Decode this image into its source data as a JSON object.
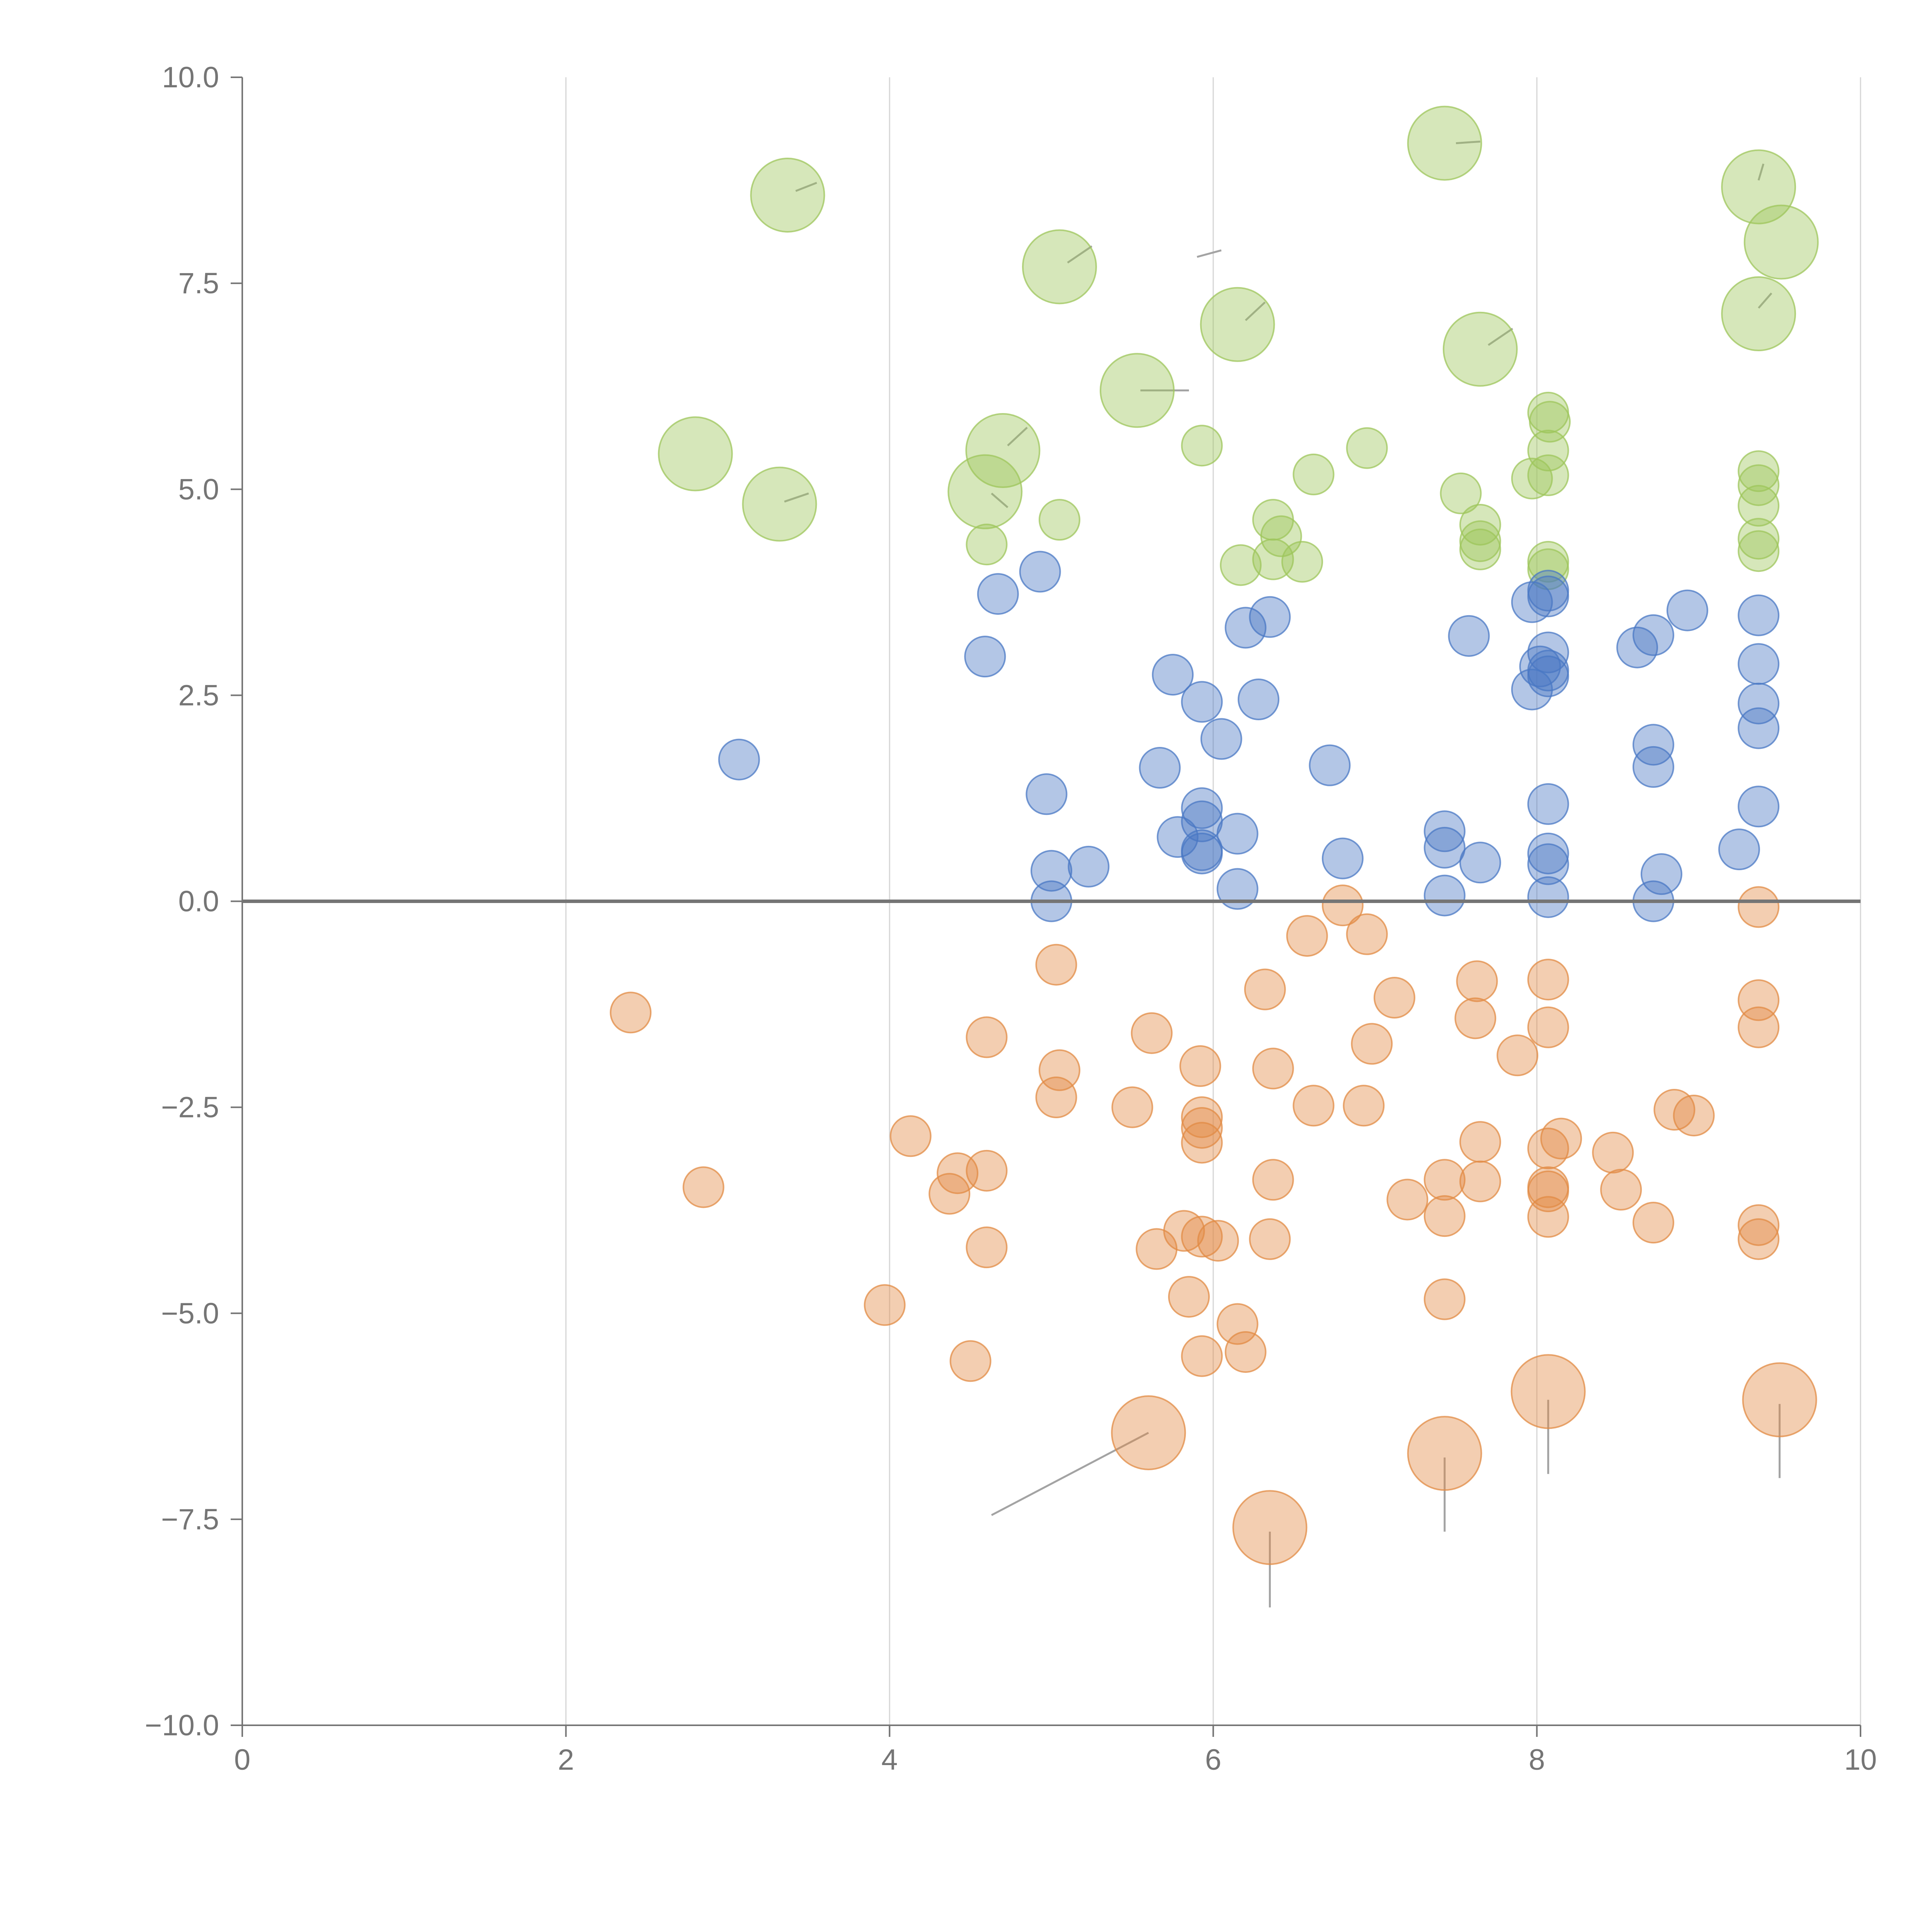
{
  "chart_data": {
    "type": "scatter",
    "title": "",
    "xlabel": "",
    "ylabel": "",
    "xlim": [
      0,
      10
    ],
    "ylim": [
      -10,
      10
    ],
    "x_ticks": [
      0,
      2,
      4,
      6,
      8,
      10
    ],
    "x_tick_labels": [
      "0",
      "2",
      "4",
      "6",
      "8",
      "10"
    ],
    "y_ticks": [
      10,
      7.5,
      5,
      2.5,
      0,
      -2.5,
      -5,
      -7.5,
      -10
    ],
    "y_tick_labels": [
      "10.0",
      "7.5",
      "5.0",
      "2.5",
      "0.0",
      "−2.5",
      "−5.0",
      "−7.5",
      "−10.0"
    ],
    "grid": "vertical",
    "reference_line_y": 0,
    "colors": {
      "green": "#9dc65b",
      "blue": "#4a78c4",
      "orange": "#e28b44",
      "axis": "#757575",
      "grid": "#d6d6d6",
      "leader": "#a3a3a3"
    },
    "series": [
      {
        "name": "green",
        "color": "#9dc65b",
        "points": [
          [
            3.37,
            8.57,
            "L"
          ],
          [
            5.05,
            7.7,
            "L"
          ],
          [
            7.43,
            9.2,
            "L"
          ],
          [
            9.37,
            8.67,
            "L"
          ],
          [
            9.51,
            8.0,
            "L"
          ],
          [
            6.15,
            7.0,
            "L"
          ],
          [
            7.65,
            6.7,
            "L"
          ],
          [
            9.37,
            7.13,
            "L"
          ],
          [
            5.53,
            6.2,
            "L"
          ],
          [
            2.8,
            5.43,
            "L"
          ],
          [
            4.7,
            5.47,
            "L"
          ],
          [
            3.32,
            4.82,
            "L"
          ],
          [
            4.59,
            4.97,
            "L"
          ],
          [
            5.93,
            5.53,
            "S"
          ],
          [
            6.95,
            5.5,
            "S"
          ],
          [
            6.62,
            5.18,
            "S"
          ],
          [
            8.07,
            5.93,
            "S"
          ],
          [
            8.08,
            5.82,
            "S"
          ],
          [
            8.07,
            5.47,
            "S"
          ],
          [
            7.97,
            5.13,
            "S"
          ],
          [
            8.07,
            5.17,
            "S"
          ],
          [
            9.37,
            5.22,
            "S"
          ],
          [
            9.37,
            5.05,
            "S"
          ],
          [
            9.37,
            4.8,
            "S"
          ],
          [
            7.53,
            4.95,
            "S"
          ],
          [
            7.65,
            4.57,
            "S"
          ],
          [
            7.65,
            4.37,
            "S"
          ],
          [
            7.65,
            4.27,
            "S"
          ],
          [
            6.37,
            4.63,
            "S"
          ],
          [
            6.42,
            4.43,
            "S"
          ],
          [
            6.37,
            4.15,
            "S"
          ],
          [
            6.55,
            4.12,
            "S"
          ],
          [
            6.17,
            4.08,
            "S"
          ],
          [
            5.05,
            4.63,
            "S"
          ],
          [
            4.6,
            4.33,
            "S"
          ],
          [
            8.07,
            4.12,
            "S"
          ],
          [
            8.07,
            4.03,
            "S"
          ],
          [
            9.37,
            4.4,
            "S"
          ],
          [
            9.37,
            4.25,
            "S"
          ]
        ]
      },
      {
        "name": "blue",
        "color": "#4a78c4",
        "points": [
          [
            4.67,
            3.73,
            "S"
          ],
          [
            4.93,
            4.0,
            "S"
          ],
          [
            4.59,
            2.97,
            "S"
          ],
          [
            3.07,
            1.72,
            "S"
          ],
          [
            5.75,
            2.75,
            "S"
          ],
          [
            5.93,
            2.42,
            "S"
          ],
          [
            6.05,
            1.97,
            "S"
          ],
          [
            6.28,
            2.45,
            "S"
          ],
          [
            6.2,
            3.32,
            "S"
          ],
          [
            6.35,
            3.45,
            "S"
          ],
          [
            5.67,
            1.62,
            "S"
          ],
          [
            4.97,
            1.3,
            "S"
          ],
          [
            5.93,
            1.13,
            "S"
          ],
          [
            5.93,
            0.97,
            "S"
          ],
          [
            5.78,
            0.78,
            "S"
          ],
          [
            5.93,
            0.62,
            "S"
          ],
          [
            5.93,
            0.58,
            "S"
          ],
          [
            6.15,
            0.82,
            "S"
          ],
          [
            6.15,
            0.15,
            "S"
          ],
          [
            5.0,
            0.37,
            "S"
          ],
          [
            5.23,
            0.42,
            "S"
          ],
          [
            5.0,
            0.0,
            "S"
          ],
          [
            6.72,
            1.65,
            "S"
          ],
          [
            6.8,
            0.52,
            "S"
          ],
          [
            7.43,
            0.85,
            "S"
          ],
          [
            7.43,
            0.65,
            "S"
          ],
          [
            7.43,
            0.07,
            "S"
          ],
          [
            7.65,
            0.47,
            "S"
          ],
          [
            7.58,
            3.22,
            "S"
          ],
          [
            7.97,
            3.63,
            "S"
          ],
          [
            8.07,
            3.77,
            "S"
          ],
          [
            8.07,
            3.7,
            "S"
          ],
          [
            8.07,
            3.02,
            "S"
          ],
          [
            8.02,
            2.85,
            "S"
          ],
          [
            8.07,
            2.73,
            "S"
          ],
          [
            8.07,
            2.8,
            "S"
          ],
          [
            7.97,
            2.57,
            "S"
          ],
          [
            8.07,
            1.18,
            "S"
          ],
          [
            8.07,
            0.58,
            "S"
          ],
          [
            8.07,
            0.45,
            "S"
          ],
          [
            8.07,
            0.05,
            "S"
          ],
          [
            8.62,
            3.08,
            "S"
          ],
          [
            8.72,
            3.23,
            "S"
          ],
          [
            8.93,
            3.53,
            "S"
          ],
          [
            8.72,
            1.9,
            "S"
          ],
          [
            8.72,
            1.63,
            "S"
          ],
          [
            8.77,
            0.33,
            "S"
          ],
          [
            8.72,
            0.0,
            "S"
          ],
          [
            9.37,
            3.47,
            "S"
          ],
          [
            9.37,
            2.88,
            "S"
          ],
          [
            9.37,
            2.4,
            "S"
          ],
          [
            9.37,
            2.1,
            "S"
          ],
          [
            9.37,
            1.15,
            "S"
          ],
          [
            9.25,
            0.63,
            "S"
          ]
        ]
      },
      {
        "name": "orange",
        "color": "#e28b44",
        "points": [
          [
            2.4,
            -1.35,
            "S"
          ],
          [
            2.85,
            -3.47,
            "S"
          ],
          [
            3.97,
            -4.9,
            "S"
          ],
          [
            4.13,
            -2.85,
            "S"
          ],
          [
            4.42,
            -3.3,
            "S"
          ],
          [
            4.37,
            -3.55,
            "S"
          ],
          [
            4.6,
            -3.27,
            "S"
          ],
          [
            4.6,
            -4.2,
            "S"
          ],
          [
            4.5,
            -5.58,
            "S"
          ],
          [
            4.6,
            -1.65,
            "S"
          ],
          [
            5.03,
            -0.77,
            "S"
          ],
          [
            5.05,
            -2.05,
            "S"
          ],
          [
            5.03,
            -2.38,
            "S"
          ],
          [
            5.5,
            -2.5,
            "S"
          ],
          [
            5.62,
            -1.6,
            "S"
          ],
          [
            5.92,
            -2.0,
            "S"
          ],
          [
            5.93,
            -2.62,
            "S"
          ],
          [
            5.93,
            -2.75,
            "S"
          ],
          [
            5.93,
            -2.93,
            "S"
          ],
          [
            5.82,
            -4.0,
            "S"
          ],
          [
            5.65,
            -4.22,
            "S"
          ],
          [
            5.93,
            -4.07,
            "S"
          ],
          [
            6.03,
            -4.12,
            "S"
          ],
          [
            5.85,
            -4.8,
            "S"
          ],
          [
            5.93,
            -5.52,
            "S"
          ],
          [
            6.15,
            -5.13,
            "S"
          ],
          [
            6.2,
            -5.47,
            "S"
          ],
          [
            6.32,
            -1.07,
            "S"
          ],
          [
            6.37,
            -2.03,
            "S"
          ],
          [
            6.37,
            -3.38,
            "S"
          ],
          [
            6.35,
            -4.1,
            "S"
          ],
          [
            6.58,
            -0.42,
            "S"
          ],
          [
            6.62,
            -2.48,
            "S"
          ],
          [
            6.8,
            -0.05,
            "S"
          ],
          [
            6.95,
            -0.4,
            "S"
          ],
          [
            6.93,
            -2.48,
            "S"
          ],
          [
            6.98,
            -1.73,
            "S"
          ],
          [
            7.12,
            -1.17,
            "S"
          ],
          [
            7.2,
            -3.62,
            "S"
          ],
          [
            7.43,
            -3.38,
            "S"
          ],
          [
            7.43,
            -3.82,
            "S"
          ],
          [
            7.43,
            -4.83,
            "S"
          ],
          [
            7.63,
            -0.97,
            "S"
          ],
          [
            7.62,
            -1.42,
            "S"
          ],
          [
            7.65,
            -2.92,
            "S"
          ],
          [
            7.65,
            -3.4,
            "S"
          ],
          [
            7.88,
            -1.87,
            "S"
          ],
          [
            8.07,
            -0.95,
            "S"
          ],
          [
            8.07,
            -1.53,
            "S"
          ],
          [
            8.07,
            -3.0,
            "S"
          ],
          [
            8.15,
            -2.88,
            "S"
          ],
          [
            8.07,
            -3.47,
            "S"
          ],
          [
            8.07,
            -3.52,
            "S"
          ],
          [
            8.07,
            -3.83,
            "S"
          ],
          [
            8.47,
            -3.05,
            "S"
          ],
          [
            8.52,
            -3.5,
            "S"
          ],
          [
            8.72,
            -3.9,
            "S"
          ],
          [
            8.85,
            -2.53,
            "S"
          ],
          [
            8.97,
            -2.6,
            "S"
          ],
          [
            9.37,
            -0.07,
            "S"
          ],
          [
            9.37,
            -1.2,
            "S"
          ],
          [
            9.37,
            -1.53,
            "S"
          ],
          [
            9.37,
            -3.93,
            "S"
          ],
          [
            9.37,
            -4.1,
            "S"
          ],
          [
            5.6,
            -6.45,
            "L"
          ],
          [
            6.35,
            -7.6,
            "L"
          ],
          [
            7.43,
            -6.7,
            "L"
          ],
          [
            8.07,
            -5.95,
            "L"
          ],
          [
            9.5,
            -6.05,
            "L"
          ]
        ]
      }
    ],
    "leader_lines": [
      [
        [
          3.42,
          8.62
        ],
        [
          3.55,
          8.72
        ]
      ],
      [
        [
          5.1,
          7.75
        ],
        [
          5.25,
          7.95
        ]
      ],
      [
        [
          7.5,
          9.2
        ],
        [
          7.65,
          9.22
        ]
      ],
      [
        [
          9.37,
          8.75
        ],
        [
          9.4,
          8.95
        ]
      ],
      [
        [
          6.2,
          7.05
        ],
        [
          6.32,
          7.27
        ]
      ],
      [
        [
          7.7,
          6.75
        ],
        [
          7.85,
          6.95
        ]
      ],
      [
        [
          9.37,
          7.2
        ],
        [
          9.45,
          7.38
        ]
      ],
      [
        [
          5.55,
          6.2
        ],
        [
          5.85,
          6.2
        ]
      ],
      [
        [
          4.73,
          5.53
        ],
        [
          4.85,
          5.75
        ]
      ],
      [
        [
          3.35,
          4.85
        ],
        [
          3.5,
          4.95
        ]
      ],
      [
        [
          4.63,
          4.95
        ],
        [
          4.73,
          4.78
        ]
      ],
      [
        [
          5.9,
          7.82
        ],
        [
          6.05,
          7.9
        ]
      ],
      [
        [
          5.6,
          -6.45
        ],
        [
          4.63,
          -7.45
        ]
      ],
      [
        [
          6.35,
          -7.65
        ],
        [
          6.35,
          -8.57
        ]
      ],
      [
        [
          7.43,
          -6.75
        ],
        [
          7.43,
          -7.65
        ]
      ],
      [
        [
          8.07,
          -6.05
        ],
        [
          8.07,
          -6.95
        ]
      ],
      [
        [
          9.5,
          -6.1
        ],
        [
          9.5,
          -7.0
        ]
      ]
    ]
  }
}
